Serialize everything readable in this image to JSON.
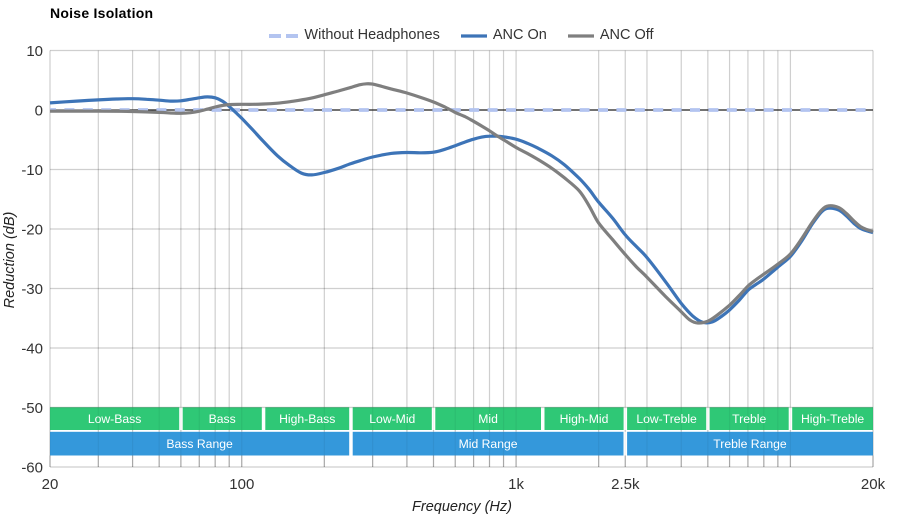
{
  "title": "Noise Isolation",
  "legend": {
    "items": [
      {
        "label": "Without Headphones",
        "color": "#b3c4f0",
        "style": "dashed"
      },
      {
        "label": "ANC On",
        "color": "#3d74b7",
        "style": "solid"
      },
      {
        "label": "ANC Off",
        "color": "#7f7f7f",
        "style": "solid"
      }
    ]
  },
  "chart_data": {
    "type": "line",
    "title": "Noise Isolation",
    "xlabel": "Frequency (Hz)",
    "ylabel": "Reduction (dB)",
    "x_scale": "log",
    "xlim": [
      20,
      20000
    ],
    "ylim": [
      -60,
      10
    ],
    "grid": true,
    "legend_position": "top-center",
    "x_ticks": [
      {
        "value": 20,
        "label": "20"
      },
      {
        "value": 100,
        "label": "100"
      },
      {
        "value": 1000,
        "label": "1k"
      },
      {
        "value": 2500,
        "label": "2.5k"
      },
      {
        "value": 20000,
        "label": "20k"
      }
    ],
    "y_ticks": [
      {
        "value": 10,
        "label": "10"
      },
      {
        "value": 0,
        "label": "0"
      },
      {
        "value": -10,
        "label": "-10"
      },
      {
        "value": -20,
        "label": "-20"
      },
      {
        "value": -30,
        "label": "-30"
      },
      {
        "value": -40,
        "label": "-40"
      },
      {
        "value": -50,
        "label": "-50"
      },
      {
        "value": -60,
        "label": "-60"
      }
    ],
    "x_gridlines": [
      20,
      30,
      40,
      50,
      60,
      70,
      80,
      90,
      100,
      200,
      300,
      400,
      500,
      600,
      700,
      800,
      900,
      1000,
      2000,
      2500,
      3000,
      4000,
      5000,
      6000,
      7000,
      8000,
      9000,
      10000,
      20000
    ],
    "zero_line_value": 0,
    "series": [
      {
        "name": "Without Headphones",
        "color": "#b3c4f0",
        "dash": true,
        "width": 3.8,
        "points": [
          [
            20,
            0
          ],
          [
            20000,
            0
          ]
        ]
      },
      {
        "name": "ANC On",
        "color": "#3d74b7",
        "dash": false,
        "width": 3.2,
        "points": [
          [
            20,
            1.2
          ],
          [
            25,
            1.5
          ],
          [
            30,
            1.7
          ],
          [
            35,
            1.85
          ],
          [
            40,
            1.9
          ],
          [
            45,
            1.8
          ],
          [
            50,
            1.65
          ],
          [
            55,
            1.5
          ],
          [
            60,
            1.55
          ],
          [
            65,
            1.8
          ],
          [
            70,
            2.05
          ],
          [
            75,
            2.2
          ],
          [
            80,
            2.05
          ],
          [
            85,
            1.5
          ],
          [
            90,
            0.6
          ],
          [
            95,
            -0.4
          ],
          [
            100,
            -1.4
          ],
          [
            110,
            -3.4
          ],
          [
            120,
            -5.3
          ],
          [
            135,
            -7.7
          ],
          [
            150,
            -9.4
          ],
          [
            165,
            -10.6
          ],
          [
            180,
            -10.9
          ],
          [
            200,
            -10.5
          ],
          [
            225,
            -9.8
          ],
          [
            250,
            -9.0
          ],
          [
            275,
            -8.4
          ],
          [
            300,
            -7.9
          ],
          [
            350,
            -7.3
          ],
          [
            400,
            -7.15
          ],
          [
            450,
            -7.2
          ],
          [
            500,
            -7.1
          ],
          [
            550,
            -6.6
          ],
          [
            600,
            -6.0
          ],
          [
            650,
            -5.4
          ],
          [
            700,
            -4.9
          ],
          [
            750,
            -4.55
          ],
          [
            800,
            -4.4
          ],
          [
            850,
            -4.4
          ],
          [
            900,
            -4.5
          ],
          [
            1000,
            -4.9
          ],
          [
            1100,
            -5.6
          ],
          [
            1200,
            -6.4
          ],
          [
            1350,
            -7.7
          ],
          [
            1500,
            -9.2
          ],
          [
            1700,
            -11.5
          ],
          [
            1850,
            -13.4
          ],
          [
            2000,
            -15.5
          ],
          [
            2250,
            -18.2
          ],
          [
            2500,
            -21.0
          ],
          [
            2750,
            -23.0
          ],
          [
            3000,
            -24.8
          ],
          [
            3500,
            -28.8
          ],
          [
            4000,
            -32.5
          ],
          [
            4400,
            -34.6
          ],
          [
            4800,
            -35.7
          ],
          [
            5200,
            -35.6
          ],
          [
            5600,
            -34.7
          ],
          [
            6000,
            -33.6
          ],
          [
            6500,
            -32.0
          ],
          [
            7000,
            -30.3
          ],
          [
            7500,
            -29.3
          ],
          [
            8000,
            -28.4
          ],
          [
            9000,
            -26.4
          ],
          [
            10000,
            -24.6
          ],
          [
            11000,
            -22.0
          ],
          [
            12000,
            -19.2
          ],
          [
            13000,
            -17.1
          ],
          [
            13800,
            -16.5
          ],
          [
            15000,
            -16.8
          ],
          [
            16000,
            -17.8
          ],
          [
            17000,
            -19.0
          ],
          [
            18000,
            -19.9
          ],
          [
            19000,
            -20.3
          ],
          [
            20000,
            -20.6
          ]
        ]
      },
      {
        "name": "ANC Off",
        "color": "#7f7f7f",
        "dash": false,
        "width": 3.2,
        "points": [
          [
            20,
            -0.2
          ],
          [
            30,
            -0.2
          ],
          [
            40,
            -0.25
          ],
          [
            50,
            -0.4
          ],
          [
            55,
            -0.5
          ],
          [
            60,
            -0.55
          ],
          [
            65,
            -0.45
          ],
          [
            70,
            -0.2
          ],
          [
            75,
            0.15
          ],
          [
            80,
            0.5
          ],
          [
            85,
            0.75
          ],
          [
            90,
            0.9
          ],
          [
            100,
            0.95
          ],
          [
            110,
            0.95
          ],
          [
            120,
            1.0
          ],
          [
            135,
            1.15
          ],
          [
            150,
            1.4
          ],
          [
            175,
            1.9
          ],
          [
            200,
            2.55
          ],
          [
            225,
            3.2
          ],
          [
            250,
            3.8
          ],
          [
            270,
            4.25
          ],
          [
            285,
            4.4
          ],
          [
            300,
            4.35
          ],
          [
            325,
            3.95
          ],
          [
            350,
            3.55
          ],
          [
            400,
            2.85
          ],
          [
            450,
            2.1
          ],
          [
            500,
            1.35
          ],
          [
            550,
            0.5
          ],
          [
            600,
            -0.4
          ],
          [
            650,
            -1.1
          ],
          [
            700,
            -1.9
          ],
          [
            750,
            -2.7
          ],
          [
            800,
            -3.5
          ],
          [
            850,
            -4.3
          ],
          [
            900,
            -5.0
          ],
          [
            1000,
            -6.3
          ],
          [
            1100,
            -7.3
          ],
          [
            1200,
            -8.3
          ],
          [
            1350,
            -9.8
          ],
          [
            1500,
            -11.4
          ],
          [
            1700,
            -13.6
          ],
          [
            1850,
            -16.2
          ],
          [
            2000,
            -19.0
          ],
          [
            2250,
            -21.8
          ],
          [
            2500,
            -24.3
          ],
          [
            2750,
            -26.4
          ],
          [
            3000,
            -28.1
          ],
          [
            3500,
            -31.3
          ],
          [
            4000,
            -33.9
          ],
          [
            4300,
            -35.3
          ],
          [
            4600,
            -35.8
          ],
          [
            5000,
            -35.5
          ],
          [
            5400,
            -34.5
          ],
          [
            6000,
            -32.8
          ],
          [
            6500,
            -31.2
          ],
          [
            7000,
            -29.6
          ],
          [
            7500,
            -28.5
          ],
          [
            8000,
            -27.6
          ],
          [
            9000,
            -25.9
          ],
          [
            10000,
            -24.2
          ],
          [
            11000,
            -21.6
          ],
          [
            12000,
            -18.9
          ],
          [
            13000,
            -16.8
          ],
          [
            13800,
            -16.1
          ],
          [
            15000,
            -16.4
          ],
          [
            16000,
            -17.4
          ],
          [
            17000,
            -18.6
          ],
          [
            18000,
            -19.6
          ],
          [
            19000,
            -20.1
          ],
          [
            20000,
            -20.4
          ]
        ]
      }
    ],
    "bands": {
      "sub_bands": {
        "color": "#2fc876",
        "items": [
          {
            "label": "Low-Bass",
            "from": 20,
            "to": 60
          },
          {
            "label": "Bass",
            "from": 60,
            "to": 120
          },
          {
            "label": "High-Bass",
            "from": 120,
            "to": 250
          },
          {
            "label": "Low-Mid",
            "from": 250,
            "to": 500
          },
          {
            "label": "Mid",
            "from": 500,
            "to": 1250
          },
          {
            "label": "High-Mid",
            "from": 1250,
            "to": 2500
          },
          {
            "label": "Low-Treble",
            "from": 2500,
            "to": 5000
          },
          {
            "label": "Treble",
            "from": 5000,
            "to": 10000
          },
          {
            "label": "High-Treble",
            "from": 10000,
            "to": 20000
          }
        ]
      },
      "ranges": {
        "color": "#3498db",
        "items": [
          {
            "label": "Bass Range",
            "from": 20,
            "to": 250
          },
          {
            "label": "Mid Range",
            "from": 250,
            "to": 2500
          },
          {
            "label": "Treble Range",
            "from": 2500,
            "to": 20000
          }
        ]
      }
    }
  }
}
